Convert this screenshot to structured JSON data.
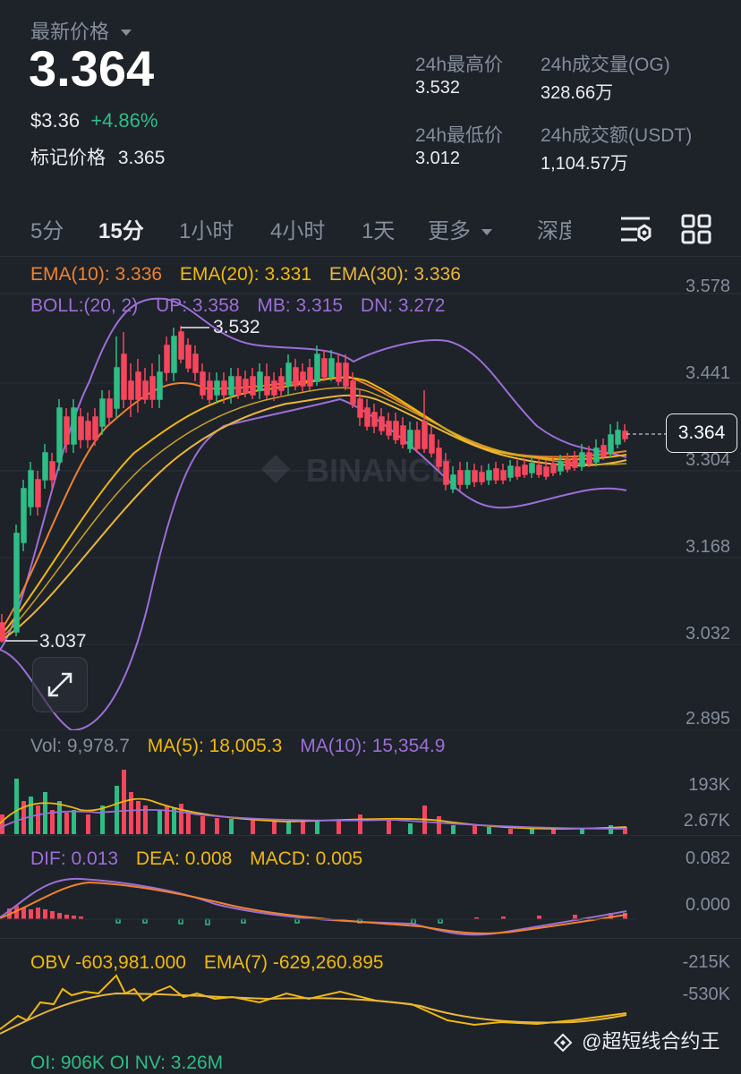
{
  "header": {
    "latest_price_label": "最新价格",
    "price": "3.364",
    "usd_price": "$3.36",
    "change": "+4.86%",
    "mark_price_label": "标记价格",
    "mark_price": "3.365"
  },
  "stats": {
    "high_label": "24h最高价",
    "high_value": "3.532",
    "volume_og_label": "24h成交量(OG)",
    "volume_og_value": "328.66万",
    "low_label": "24h最低价",
    "low_value": "3.012",
    "volume_usdt_label": "24h成交额(USDT)",
    "volume_usdt_value": "1,104.57万"
  },
  "tabs": [
    "5分",
    "15分",
    "1小时",
    "4小时",
    "1天",
    "更多",
    "深度"
  ],
  "active_tab": "15分",
  "main_chart": {
    "ema10": "EMA(10): 3.336",
    "ema20": "EMA(20): 3.331",
    "ema30": "EMA(30): 3.336",
    "boll": "BOLL:(20, 2)",
    "up": "UP: 3.358",
    "mb": "MB: 3.315",
    "dn": "DN: 3.272",
    "y_ticks": [
      "3.578",
      "3.441",
      "3.304",
      "3.168",
      "3.032",
      "2.895"
    ],
    "high_marker": "3.532",
    "low_marker": "3.037",
    "current_price_tag": "3.364",
    "watermark": "BINANCE"
  },
  "volume_panel": {
    "vol": "Vol: 9,978.7",
    "ma5": "MA(5): 18,005.3",
    "ma10": "MA(10): 15,354.9",
    "y_ticks": [
      "193K",
      "2.67K"
    ]
  },
  "macd_panel": {
    "dif": "DIF: 0.013",
    "dea": "DEA: 0.008",
    "macd": "MACD: 0.005",
    "y_ticks": [
      "0.082",
      "0.000"
    ]
  },
  "obv_panel": {
    "obv": "OBV -603,981.000",
    "ema7": "EMA(7) -629,260.895",
    "y_ticks": [
      "-215K",
      "-530K"
    ]
  },
  "oi_partial": "OI: 906K  OI NV: 3.26M",
  "footer_watermark": "@超短线合约王",
  "colors": {
    "background": "#1e2229",
    "up": "#2ebd85",
    "down": "#f6465d",
    "ema10": "#f0822d",
    "ema20": "#f0b90b",
    "boll": "#9c6fd6"
  },
  "icons": [
    "chevron-down-icon",
    "indicator-settings-icon",
    "grid-layout-icon",
    "expand-icon",
    "binance-logo-icon"
  ]
}
